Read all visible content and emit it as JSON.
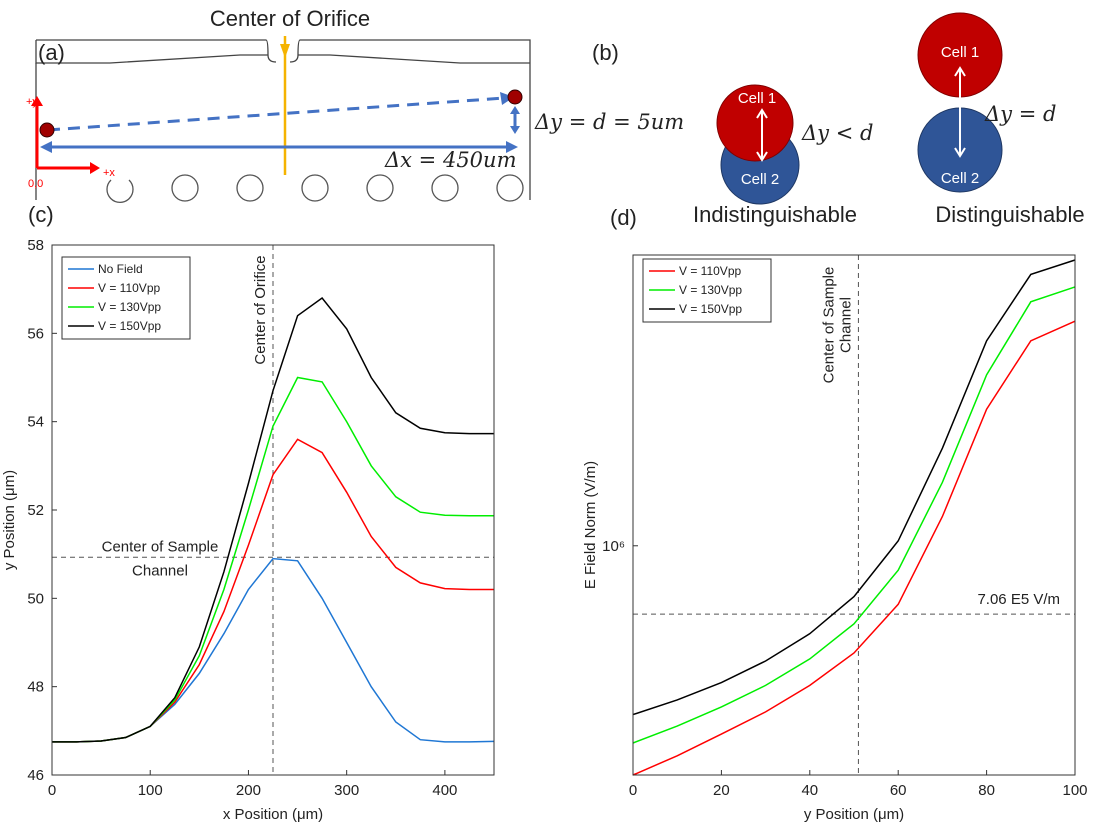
{
  "panel_a": {
    "label": "(a)",
    "title": "Center of Orifice",
    "axis_y": "+y",
    "axis_x": "+x",
    "origin": "0,0",
    "dy": "Δy = d = 5um",
    "dx": "Δx = 450um"
  },
  "panel_b": {
    "label": "(b)",
    "left": {
      "cell1": "Cell 1",
      "cell2": "Cell 2",
      "relation": "Δy < d",
      "caption": "Indistinguishable"
    },
    "right": {
      "cell1": "Cell 1",
      "cell2": "Cell 2",
      "relation": "Δy = d",
      "caption": "Distinguishable"
    }
  },
  "chart_data": [
    {
      "type": "line",
      "panel_label": "(c)",
      "xlabel": "x Position (μm)",
      "ylabel": "y Position (μm)",
      "x": [
        0,
        25,
        50,
        75,
        100,
        125,
        150,
        175,
        200,
        225,
        250,
        275,
        300,
        325,
        350,
        375,
        400,
        425,
        450
      ],
      "series": [
        {
          "name": "No Field",
          "color": "#1f77d4",
          "values": [
            46.75,
            46.75,
            46.77,
            46.85,
            47.1,
            47.6,
            48.3,
            49.2,
            50.2,
            50.9,
            50.85,
            50.0,
            49.0,
            48.0,
            47.2,
            46.8,
            46.75,
            46.75,
            46.76
          ]
        },
        {
          "name": "V = 110Vpp",
          "color": "#ff0000",
          "values": [
            46.75,
            46.75,
            46.77,
            46.85,
            47.1,
            47.65,
            48.5,
            49.7,
            51.2,
            52.8,
            53.6,
            53.3,
            52.4,
            51.4,
            50.7,
            50.35,
            50.22,
            50.2,
            50.2
          ]
        },
        {
          "name": "V = 130Vpp",
          "color": "#00ee00",
          "values": [
            46.75,
            46.75,
            46.77,
            46.85,
            47.1,
            47.7,
            48.7,
            50.2,
            52.0,
            53.9,
            55.0,
            54.9,
            54.0,
            53.0,
            52.3,
            51.95,
            51.88,
            51.87,
            51.87
          ]
        },
        {
          "name": "V = 150Vpp",
          "color": "#000000",
          "values": [
            46.75,
            46.75,
            46.77,
            46.85,
            47.1,
            47.75,
            48.9,
            50.6,
            52.6,
            54.7,
            56.4,
            56.8,
            56.1,
            55.0,
            54.2,
            53.85,
            53.75,
            53.73,
            53.73
          ]
        }
      ],
      "xlim": [
        0,
        450
      ],
      "ylim": [
        46,
        58
      ],
      "xticks": [
        0,
        100,
        200,
        300,
        400
      ],
      "yticks": [
        46,
        48,
        50,
        52,
        54,
        56,
        58
      ],
      "legend": "upper left",
      "vlines": [
        {
          "x": 225,
          "label": [
            "Center of Orifice"
          ]
        }
      ],
      "hlines": [
        {
          "y": 50.93,
          "label": [
            "Center of Sample",
            "Channel"
          ]
        }
      ]
    },
    {
      "type": "line",
      "panel_label": "(d)",
      "xlabel": "y Position (μm)",
      "ylabel": "E Field Norm (V/m)",
      "ylog": true,
      "x": [
        0,
        10,
        20,
        30,
        40,
        50,
        60,
        70,
        80,
        90,
        100
      ],
      "series": [
        {
          "name": "V = 110Vpp",
          "color": "#ff0000",
          "values": [
            311000,
            343000,
            383000,
            429000,
            491000,
            579000,
            742000,
            1161000,
            2006000,
            2842000,
            3140000
          ]
        },
        {
          "name": "V = 130Vpp",
          "color": "#00ee00",
          "values": [
            366000,
            399000,
            440000,
            491000,
            562000,
            672000,
            883000,
            1382000,
            2388000,
            3467000,
            3740000
          ]
        },
        {
          "name": "V = 150Vpp",
          "color": "#000000",
          "values": [
            423000,
            456000,
            498000,
            556000,
            639000,
            772000,
            1025000,
            1644000,
            2842000,
            3985000,
            4290000
          ]
        }
      ],
      "xlim": [
        0,
        100
      ],
      "ylim": [
        311000,
        4400000
      ],
      "xticks": [
        0,
        20,
        40,
        60,
        80,
        100
      ],
      "yticks": [
        {
          "value": 1000000,
          "label": "10⁶"
        }
      ],
      "legend": "upper left",
      "vlines": [
        {
          "x": 51,
          "label": [
            "Center of Sample",
            "Channel"
          ]
        }
      ],
      "hlines": [
        {
          "y": 706000,
          "label": [
            "7.06 E5 V/m"
          ]
        }
      ]
    }
  ]
}
